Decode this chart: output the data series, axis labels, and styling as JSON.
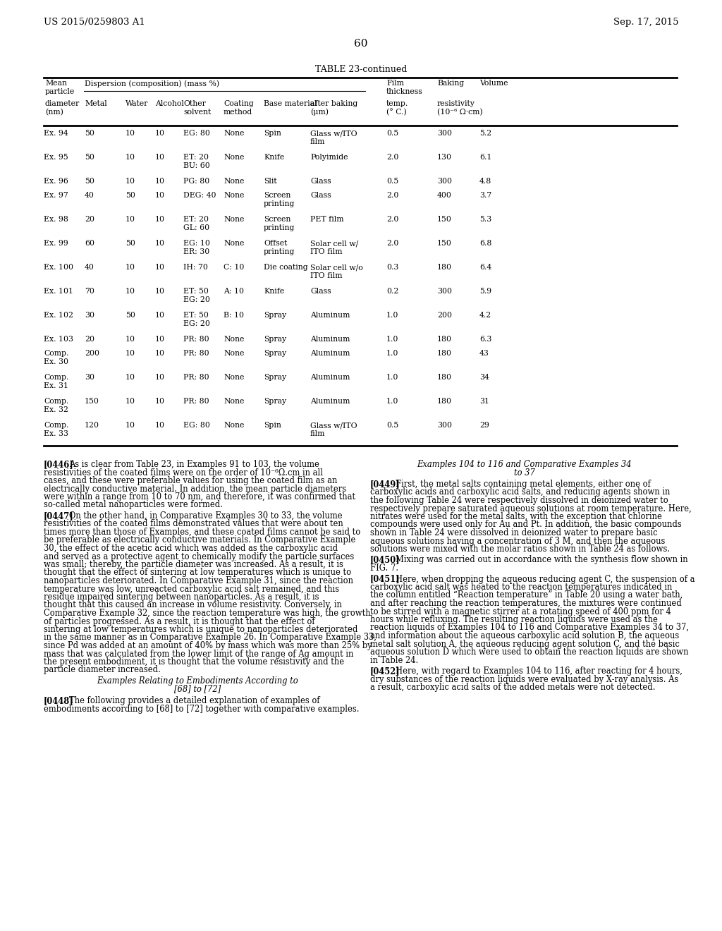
{
  "header_left": "US 2015/0259803 A1",
  "header_right": "Sep. 17, 2015",
  "page_number": "60",
  "table_title": "TABLE 23-continued",
  "table_rows": [
    [
      "Ex. 94",
      "50",
      "10",
      "10",
      "EG: 80",
      "None",
      "Spin",
      "Glass w/ITO\nfilm",
      "0.5",
      "300",
      "5.2"
    ],
    [
      "Ex. 95",
      "50",
      "10",
      "10",
      "ET: 20\nBU: 60",
      "None",
      "Knife",
      "Polyimide",
      "2.0",
      "130",
      "6.1"
    ],
    [
      "Ex. 96",
      "50",
      "10",
      "10",
      "PG: 80",
      "None",
      "Slit",
      "Glass",
      "0.5",
      "300",
      "4.8"
    ],
    [
      "Ex. 97",
      "40",
      "50",
      "10",
      "DEG: 40",
      "None",
      "Screen\nprinting",
      "Glass",
      "2.0",
      "400",
      "3.7"
    ],
    [
      "Ex. 98",
      "20",
      "10",
      "10",
      "ET: 20\nGL: 60",
      "None",
      "Screen\nprinting",
      "PET film",
      "2.0",
      "150",
      "5.3"
    ],
    [
      "Ex. 99",
      "60",
      "50",
      "10",
      "EG: 10\nER: 30",
      "None",
      "Offset\nprinting",
      "Solar cell w/\nITO film",
      "2.0",
      "150",
      "6.8"
    ],
    [
      "Ex. 100",
      "40",
      "10",
      "10",
      "IH: 70",
      "C: 10",
      "Die coating",
      "Solar cell w/o\nITO film",
      "0.3",
      "180",
      "6.4"
    ],
    [
      "Ex. 101",
      "70",
      "10",
      "10",
      "ET: 50\nEG: 20",
      "A: 10",
      "Knife",
      "Glass",
      "0.2",
      "300",
      "5.9"
    ],
    [
      "Ex. 102",
      "30",
      "50",
      "10",
      "ET: 50\nEG: 20",
      "B: 10",
      "Spray",
      "Aluminum",
      "1.0",
      "200",
      "4.2"
    ],
    [
      "Ex. 103",
      "20",
      "10",
      "10",
      "PR: 80",
      "None",
      "Spray",
      "Aluminum",
      "1.0",
      "180",
      "6.3"
    ],
    [
      "Comp.\nEx. 30",
      "200",
      "10",
      "10",
      "PR: 80",
      "None",
      "Spray",
      "Aluminum",
      "1.0",
      "180",
      "43"
    ],
    [
      "Comp.\nEx. 31",
      "30",
      "10",
      "10",
      "PR: 80",
      "None",
      "Spray",
      "Aluminum",
      "1.0",
      "180",
      "34"
    ],
    [
      "Comp.\nEx. 32",
      "150",
      "10",
      "10",
      "PR: 80",
      "None",
      "Spray",
      "Aluminum",
      "1.0",
      "180",
      "31"
    ],
    [
      "Comp.\nEx. 33",
      "120",
      "10",
      "10",
      "EG: 80",
      "None",
      "Spin",
      "Glass w/ITO\nfilm",
      "0.5",
      "300",
      "29"
    ]
  ],
  "para_left_0_tag": "[0446]",
  "para_left_0_text": "As is clear from Table 23, in Examples 91 to 103, the volume resistivities of the coated films were on the order of 10⁻⁶Ω.cm in all cases, and these were preferable values for using the coated film as an electrically conductive material. In addition, the mean particle diameters were within a range from 10 to 70 nm, and therefore, it was confirmed that so-called metal nanoparticles were formed.",
  "para_left_1_tag": "[0447]",
  "para_left_1_text": "On the other hand, in Comparative Examples 30 to 33, the volume resistivities of the coated films demonstrated values that were about ten times more than those of Examples, and these coated films cannot be said to be preferable as electrically conductive materials. In Comparative Example 30, the effect of the acetic acid which was added as the carboxylic acid and served as a protective agent to chemically modify the particle surfaces was small; thereby, the particle diameter was increased. As a result, it is thought that the effect of sintering at low temperatures which is unique to nanoparticles deteriorated. In Comparative Example 31, since the reaction temperature was low, unreacted carboxylic acid salt remained, and this residue impaired sintering between nanoparticles. As a result, it is thought that this caused an increase in volume resistivity. Conversely, in Comparative Example 32, since the reaction temperature was high, the growth of particles progressed. As a result, it is thought that the effect of sintering at low temperatures which is unique to nanoparticles deteriorated in the same manner as in Comparative Example 26. In Comparative Example 33, since Pd was added at an amount of 40% by mass which was more than 25% by mass that was calculated from the lower limit of the range of Ag amount in the present embodiment, it is thought that the volume resistivity and the particle diameter increased.",
  "para_left_2_center": "Examples Relating to Embodiments According to\n[68] to [72]",
  "para_left_3_tag": "[0448]",
  "para_left_3_text": "The following provides a detailed explanation of examples of embodiments according to [68] to [72] together with comparative examples.",
  "para_right_0_center": "Examples 104 to 116 and Comparative Examples 34\nto 37",
  "para_right_1_tag": "[0449]",
  "para_right_1_text": "First, the metal salts containing metal elements, either one of carboxylic acids and carboxylic acid salts, and reducing agents shown in the following Table 24 were respectively dissolved in deionized water to respectively prepare saturated aqueous solutions at room temperature. Here, nitrates were used for the metal salts, with the exception that chlorine compounds were used only for Au and Pt. In addition, the basic compounds shown in Table 24 were dissolved in deionized water to prepare basic aqueous solutions having a concentration of 3 M, and then the aqueous solutions were mixed with the molar ratios shown in Table 24 as follows.",
  "para_right_2_tag": "[0450]",
  "para_right_2_text": "Mixing was carried out in accordance with the synthesis flow shown in FIG. 7.",
  "para_right_3_tag": "[0451]",
  "para_right_3_text": "Here, when dropping the aqueous reducing agent C, the suspension of a carboxylic acid salt was heated to the reaction temperatures indicated in the column entitled “Reaction temperature” in Table 20 using a water bath, and after reaching the reaction temperatures, the mixtures were continued to be stirred with a magnetic stirrer at a rotating speed of 400 ppm for 4 hours while refluxing. The resulting reaction liquids were used as the reaction liquids of Examples 104 to 116 and Comparative Examples 34 to 37, and information about the aqueous carboxylic acid solution B, the aqueous metal salt solution A, the aqueous reducing agent solution C, and the basic aqueous solution D which were used to obtain the reaction liquids are shown in Table 24.",
  "para_right_4_tag": "[0452]",
  "para_right_4_text": "Here, with regard to Examples 104 to 116, after reacting for 4 hours, dry substances of the reaction liquids were evaluated by X-ray analysis. As a result, carboxylic acid salts of the added metals were not detected."
}
